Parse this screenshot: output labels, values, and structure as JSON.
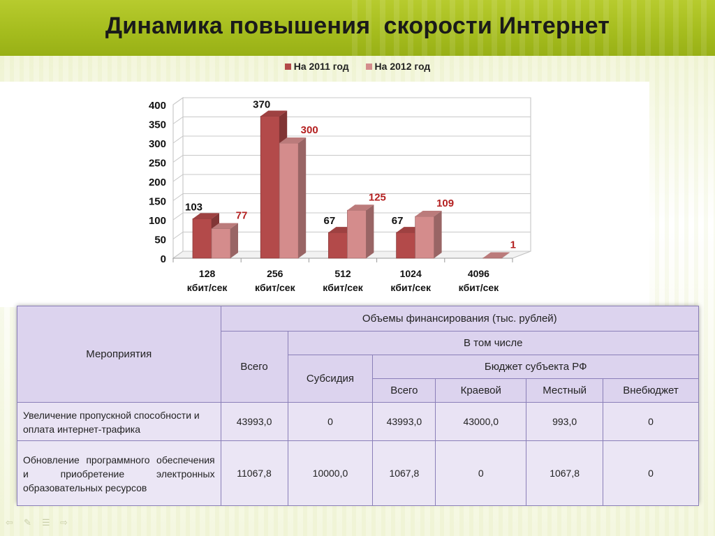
{
  "title": "Динамика повышения  скорости Интернет",
  "colors": {
    "series_2011": "#b34a4a",
    "series_2012": "#d48c8c",
    "label_2011": "#111111",
    "label_2012": "#b42020",
    "title_bar": "#a6bd1e"
  },
  "chart_data": {
    "type": "bar",
    "style": "3d-clustered",
    "categories": [
      [
        "128",
        "кбит/сек"
      ],
      [
        "256",
        "кбит/сек"
      ],
      [
        "512",
        "кбит/сек"
      ],
      [
        "1024",
        "кбит/сек"
      ],
      [
        "4096",
        "кбит/сек"
      ]
    ],
    "series": [
      {
        "name": "На 2011 год",
        "values": [
          103,
          370,
          67,
          67,
          null
        ]
      },
      {
        "name": "На 2012 год",
        "values": [
          77,
          300,
          125,
          109,
          1
        ]
      }
    ],
    "ylim": [
      0,
      400
    ],
    "yticks": [
      0,
      50,
      100,
      150,
      200,
      250,
      300,
      350,
      400
    ],
    "grid": true,
    "legend": "top"
  },
  "table": {
    "h_events": "Мероприятия",
    "h_funding": "Объемы финансирования (тыс. рублей)",
    "h_total": "Всего",
    "h_including": "В том числе",
    "h_subsidy": "Субсидия",
    "h_budget": "Бюджет субъекта РФ",
    "h_b_total": "Всего",
    "h_regional": "Краевой",
    "h_local": "Местный",
    "h_offbudget": "Внебюджет",
    "rows": [
      {
        "name": "Увеличение пропускной способности и оплата интернет-трафика",
        "total": "43993,0",
        "subsidy": "0",
        "b_total": "43993,0",
        "regional": "43000,0",
        "local": "993,0",
        "offbudget": "0"
      },
      {
        "name": "Обновление программного обеспечения и приобретение электронных образовательных ресурсов",
        "total": "11067,8",
        "subsidy": "10000,0",
        "b_total": "1067,8",
        "regional": "0",
        "local": "1067,8",
        "offbudget": "0"
      }
    ]
  },
  "footer_icons": [
    "back-arrow-icon",
    "pen-icon",
    "menu-icon",
    "forward-arrow-icon"
  ]
}
